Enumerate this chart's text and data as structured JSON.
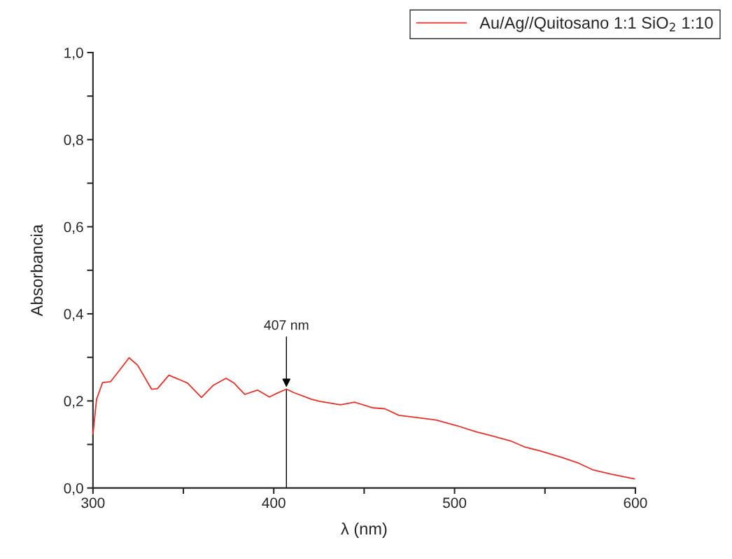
{
  "chart_data": {
    "type": "line",
    "xlabel": "λ (nm)",
    "ylabel": "Absorbancia",
    "xlim": [
      300,
      600
    ],
    "ylim": [
      0,
      1.0
    ],
    "xticks": [
      300,
      {
        "value": 350,
        "label": null
      },
      400,
      {
        "value": 450,
        "label": null
      },
      500,
      {
        "value": 550,
        "label": null
      },
      600
    ],
    "yticks": [
      {
        "value": 0,
        "label": "0,0"
      },
      {
        "value": 0.1,
        "label": null
      },
      {
        "value": 0.2,
        "label": "0,2"
      },
      {
        "value": 0.3,
        "label": null
      },
      {
        "value": 0.4,
        "label": "0,4"
      },
      {
        "value": 0.5,
        "label": null
      },
      {
        "value": 0.6,
        "label": "0,6"
      },
      {
        "value": 0.7,
        "label": null
      },
      {
        "value": 0.8,
        "label": "0,8"
      },
      {
        "value": 0.9,
        "label": null
      },
      {
        "value": 1.0,
        "label": "1,0"
      }
    ],
    "grid": false,
    "legend": "top right",
    "marker": "none",
    "line_style": "solid",
    "annotations": [
      {
        "text": "407 nm",
        "x": 407,
        "y": 0.227
      }
    ],
    "series": [
      {
        "name": "Au/Ag//Quitosano 1:1 SiO$_{2}$ 1:10",
        "color": "#e8312a",
        "x": [
          300,
          302,
          305.3,
          309.7,
          313.5,
          320,
          324.7,
          332.4,
          335.6,
          342,
          348.4,
          352.3,
          360,
          366.6,
          373.6,
          378,
          384,
          391,
          397.6,
          402,
          407,
          411.1,
          420.8,
          425.3,
          436.9,
          444.7,
          455,
          461.4,
          469.2,
          480.8,
          489.8,
          501.4,
          511.8,
          519.5,
          531.1,
          538.9,
          546.6,
          559.5,
          568.6,
          576.3,
          586.6,
          599.5
        ],
        "values": [
          0.124,
          0.204,
          0.242,
          0.244,
          0.264,
          0.299,
          0.282,
          0.227,
          0.228,
          0.259,
          0.248,
          0.241,
          0.208,
          0.236,
          0.252,
          0.241,
          0.215,
          0.225,
          0.209,
          0.218,
          0.227,
          0.219,
          0.204,
          0.199,
          0.191,
          0.197,
          0.184,
          0.182,
          0.167,
          0.161,
          0.156,
          0.143,
          0.129,
          0.121,
          0.108,
          0.094,
          0.086,
          0.07,
          0.057,
          0.042,
          0.032,
          0.021
        ]
      }
    ]
  }
}
